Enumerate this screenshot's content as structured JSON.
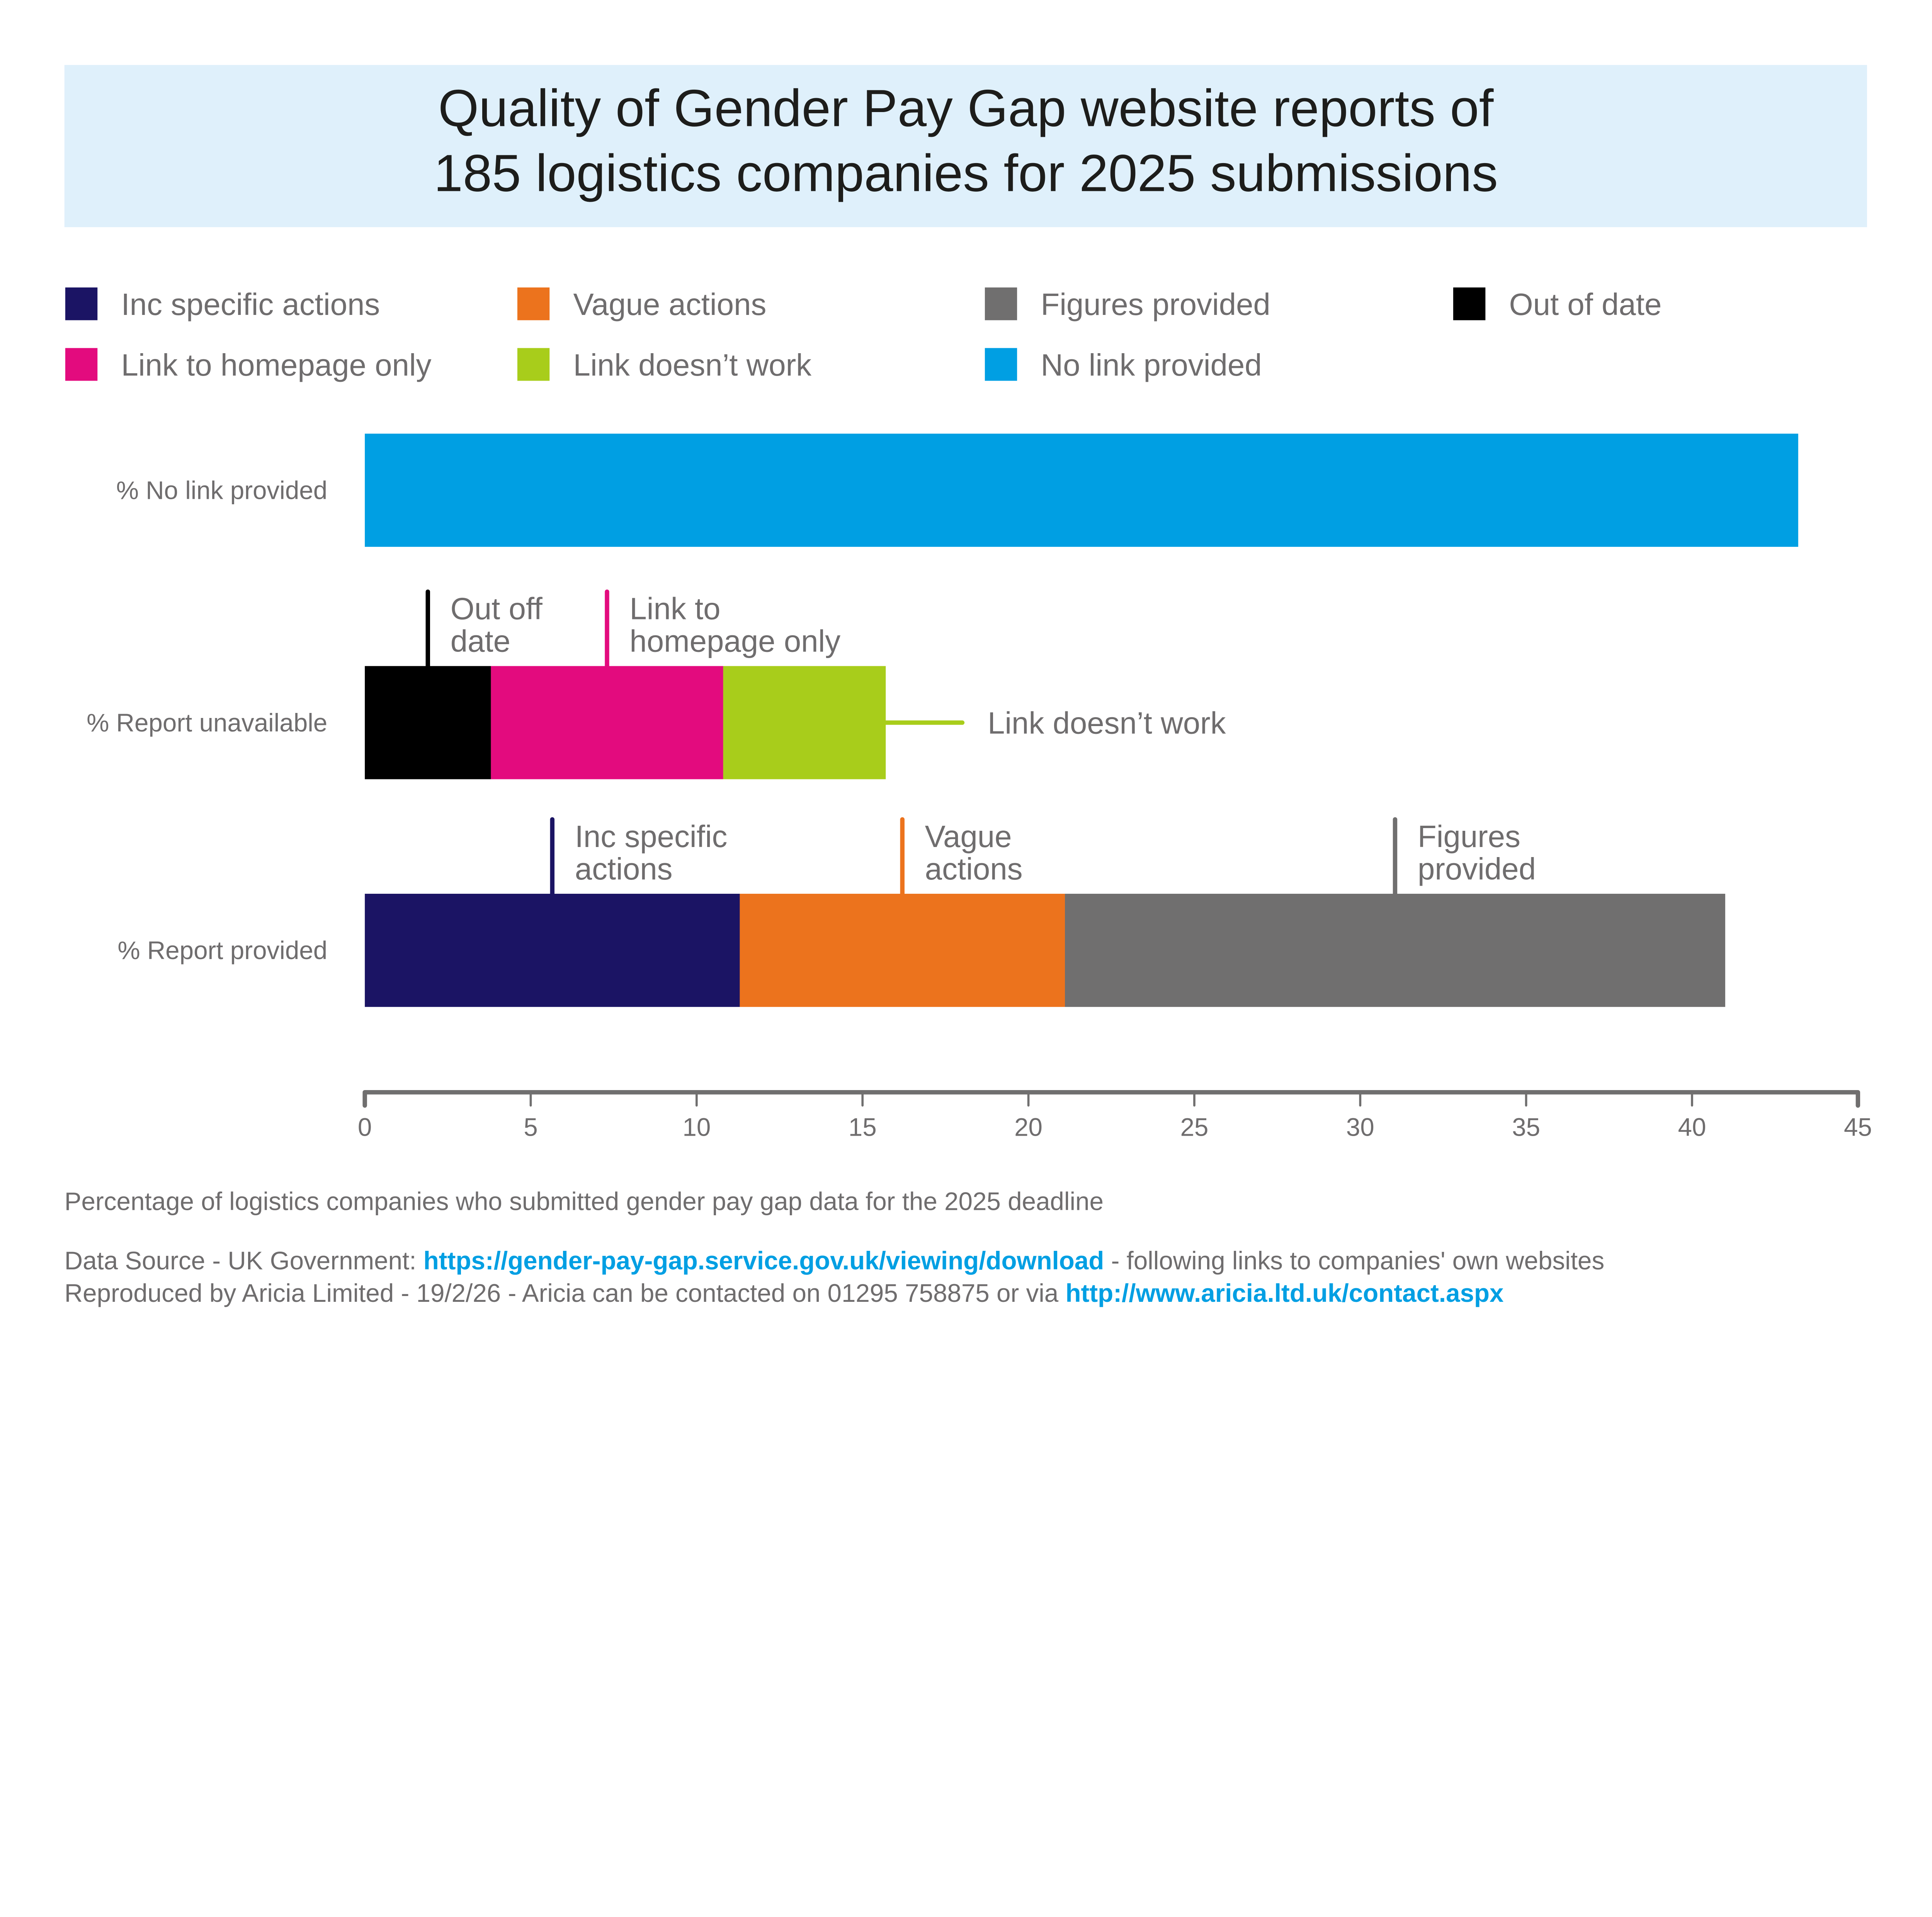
{
  "chart_data": {
    "type": "bar",
    "orientation": "horizontal",
    "stacked": true,
    "title": "Quality of Gender Pay Gap website reports of 185 logistics companies for 2025 submissions",
    "title_lines": [
      "Quality of Gender Pay Gap website reports of",
      "185 logistics companies for 2025 submissions"
    ],
    "xlabel": "Percentage of logistics companies who submitted gender pay gap data for the 2025 deadline",
    "ylabel": "",
    "xlim": [
      0,
      45
    ],
    "xticks": [
      0,
      5,
      10,
      15,
      20,
      25,
      30,
      35,
      40,
      45
    ],
    "grid": false,
    "legend_position": "top",
    "legend": [
      {
        "key": "inc_specific",
        "label": "Inc specific actions",
        "color": "#1b1464"
      },
      {
        "key": "vague",
        "label": "Vague actions",
        "color": "#ec731d"
      },
      {
        "key": "figures",
        "label": "Figures provided",
        "color": "#706f6f"
      },
      {
        "key": "out_of_date",
        "label": "Out of date",
        "color": "#000000"
      },
      {
        "key": "homepage",
        "label": "Link to homepage only",
        "color": "#e30b7e"
      },
      {
        "key": "link_broken",
        "label": "Link doesn’t work",
        "color": "#a8cd1b"
      },
      {
        "key": "no_link",
        "label": "No link provided",
        "color": "#009fe3"
      }
    ],
    "categories": [
      "% No link provided",
      "% Report unavailable",
      "% Report provided"
    ],
    "bars": [
      {
        "category": "% No link provided",
        "segments": [
          {
            "key": "no_link",
            "name": "No link provided",
            "value": 43.2,
            "color": "#009fe3"
          }
        ]
      },
      {
        "category": "% Report unavailable",
        "segments": [
          {
            "key": "out_of_date",
            "name": "Out of date",
            "value": 3.8,
            "color": "#000000",
            "annotation": [
              "Out off",
              "date"
            ],
            "annotation_style": "top"
          },
          {
            "key": "homepage",
            "name": "Link to homepage only",
            "value": 7.0,
            "color": "#e30b7e",
            "annotation": [
              "Link to",
              "homepage only"
            ],
            "annotation_style": "top"
          },
          {
            "key": "link_broken",
            "name": "Link doesn’t work",
            "value": 4.9,
            "color": "#a8cd1b",
            "annotation": [
              "Link doesn’t work"
            ],
            "annotation_style": "right"
          }
        ]
      },
      {
        "category": "% Report provided",
        "segments": [
          {
            "key": "inc_specific",
            "name": "Inc specific actions",
            "value": 11.3,
            "color": "#1b1464",
            "annotation": [
              "Inc specific",
              "actions"
            ],
            "annotation_style": "top"
          },
          {
            "key": "vague",
            "name": "Vague actions",
            "value": 9.8,
            "color": "#ec731d",
            "annotation": [
              "Vague",
              "actions"
            ],
            "annotation_style": "top"
          },
          {
            "key": "figures",
            "name": "Figures provided",
            "value": 19.9,
            "color": "#706f6f",
            "annotation": [
              "Figures",
              "provided"
            ],
            "annotation_style": "top"
          }
        ]
      }
    ]
  },
  "colors": {
    "title_background": "#dff0fb",
    "text": "#6f6d6e",
    "title_text": "#1d1d1b",
    "axis": "#706f6f",
    "link": "#009fe3"
  },
  "footer": {
    "source_prefix": "Data Source - UK Government: ",
    "source_link": "https://gender-pay-gap.service.gov.uk/viewing/download",
    "source_suffix": " - following links to companies' own websites",
    "credit_prefix": "Reproduced by Aricia Limited - 19/2/26 - Aricia can be contacted on 01295 758875 or via ",
    "credit_link": "http://www.aricia.ltd.uk/contact.aspx"
  }
}
